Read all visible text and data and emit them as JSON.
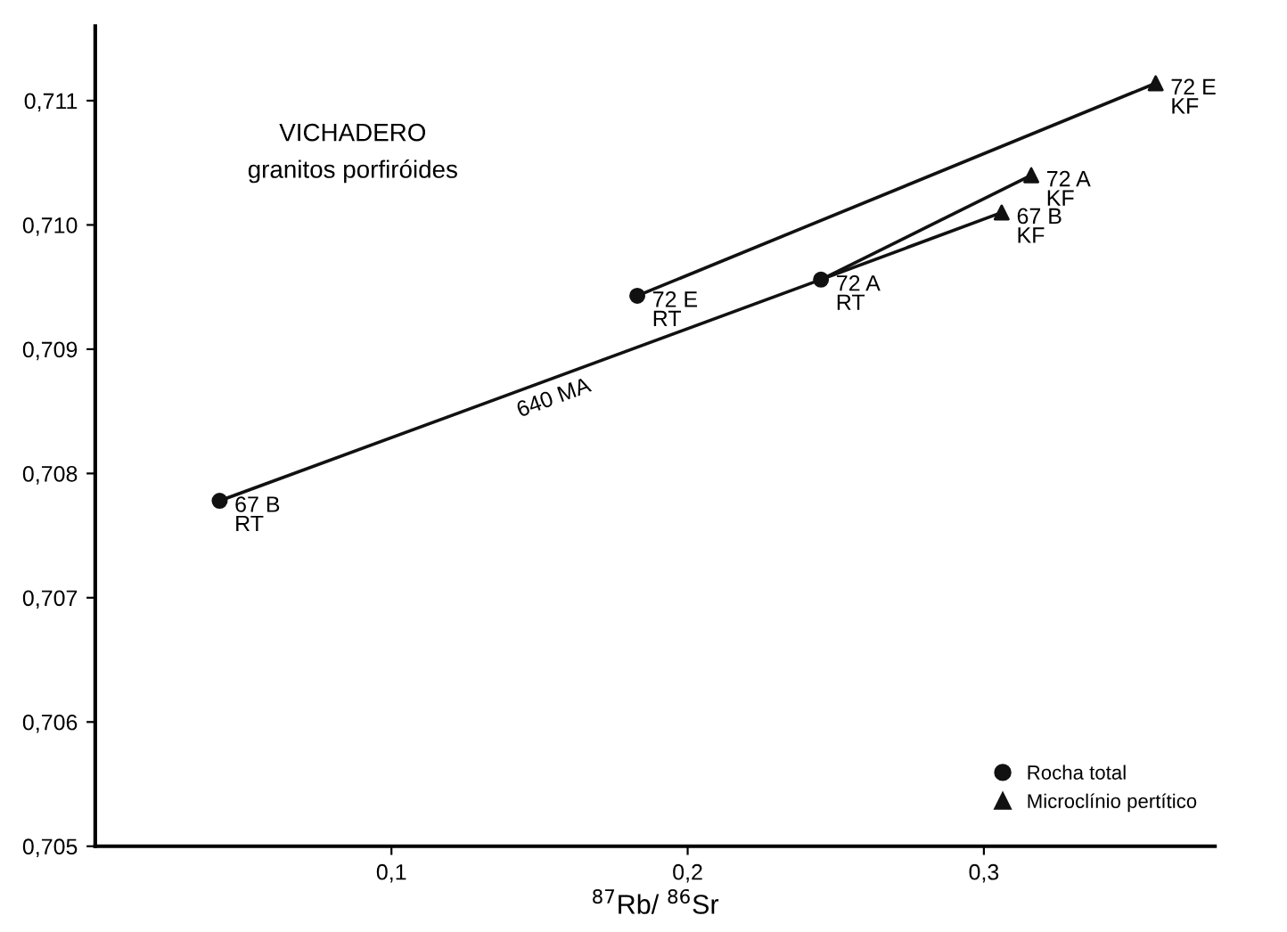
{
  "chart_data": {
    "type": "scatter",
    "title": "VICHADERO",
    "subtitle": "granitos porfiróides",
    "xlabel": "$^{87}$Rb/ $^{86}$Sr",
    "xlim": [
      0,
      0.378
    ],
    "ylim": [
      0.705,
      0.7116
    ],
    "xticks": [
      {
        "value": 0.1,
        "label": "0,1"
      },
      {
        "value": 0.2,
        "label": "0,2"
      },
      {
        "value": 0.3,
        "label": "0,3"
      }
    ],
    "yticks": [
      {
        "value": 0.705,
        "label": "0,705"
      },
      {
        "value": 0.706,
        "label": "0,706"
      },
      {
        "value": 0.707,
        "label": "0,707"
      },
      {
        "value": 0.708,
        "label": "0,708"
      },
      {
        "value": 0.709,
        "label": "0,709"
      },
      {
        "value": 0.71,
        "label": "0,710"
      },
      {
        "value": 0.711,
        "label": "0,711"
      }
    ],
    "grid": false,
    "legend": "bottom right",
    "series": [
      {
        "type": "line",
        "color": "#111111",
        "marker": "none",
        "x": [
          0.042,
          0.245
        ],
        "values": [
          0.70778,
          0.70956
        ]
      },
      {
        "type": "line",
        "color": "#111111",
        "marker": "none",
        "x": [
          0.183,
          0.358
        ],
        "values": [
          0.70943,
          0.71114
        ]
      },
      {
        "type": "line",
        "color": "#111111",
        "marker": "none",
        "x": [
          0.245,
          0.316
        ],
        "values": [
          0.70956,
          0.7104
        ]
      },
      {
        "type": "line",
        "color": "#111111",
        "marker": "none",
        "x": [
          0.245,
          0.306
        ],
        "values": [
          0.70956,
          0.7101
        ]
      },
      {
        "name": "Rocha total",
        "color": "#111111",
        "marker": "circle",
        "x": [
          0.042,
          0.183,
          0.245
        ],
        "values": [
          0.70778,
          0.70943,
          0.70956
        ]
      },
      {
        "name": "Microclínio pertítico",
        "color": "#111111",
        "marker": "triangle",
        "x": [
          0.316,
          0.306,
          0.358
        ],
        "values": [
          0.7104,
          0.7101,
          0.71114
        ]
      }
    ],
    "annotations": [
      {
        "text": "67 B\nRT",
        "x": 0.042,
        "y": 0.70778
      },
      {
        "text": "72 E\nRT",
        "x": 0.183,
        "y": 0.70943
      },
      {
        "text": "72 A\nRT",
        "x": 0.245,
        "y": 0.70956
      },
      {
        "text": "72 A\nKF",
        "x": 0.316,
        "y": 0.7104
      },
      {
        "text": "67 B\nKF",
        "x": 0.306,
        "y": 0.7101
      },
      {
        "text": "72 E\nKF",
        "x": 0.358,
        "y": 0.71114
      },
      "640 MA"
    ]
  }
}
